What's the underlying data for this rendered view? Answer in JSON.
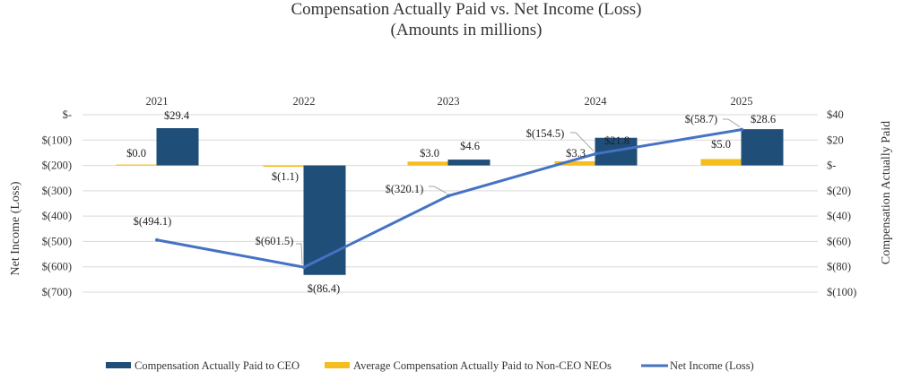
{
  "chart_data": {
    "type": "bar",
    "title": "Compensation Actually Paid vs. Net Income (Loss)",
    "subtitle": "(Amounts in millions)",
    "categories": [
      "2021",
      "2022",
      "2023",
      "2024",
      "2025"
    ],
    "y_left": {
      "label": "Net Income (Loss)",
      "ylim": [
        -700,
        0
      ],
      "ticks": [
        {
          "value": 0,
          "label": "$-"
        },
        {
          "value": -100,
          "label": "$(100)"
        },
        {
          "value": -200,
          "label": "$(200)"
        },
        {
          "value": -300,
          "label": "$(300)"
        },
        {
          "value": -400,
          "label": "$(400)"
        },
        {
          "value": -500,
          "label": "$(500)"
        },
        {
          "value": -600,
          "label": "$(600)"
        },
        {
          "value": -700,
          "label": "$(700)"
        }
      ]
    },
    "y_right": {
      "label": "Compensation Actually Paid",
      "ylim": [
        -100,
        40
      ],
      "ticks": [
        {
          "value": 40,
          "label": "$40"
        },
        {
          "value": 20,
          "label": "$20"
        },
        {
          "value": 0,
          "label": "$-"
        },
        {
          "value": -20,
          "label": "$(20)"
        },
        {
          "value": -40,
          "label": "$(40)"
        },
        {
          "value": -60,
          "label": "$(60)"
        },
        {
          "value": -80,
          "label": "$(80)"
        },
        {
          "value": -100,
          "label": "$(100)"
        }
      ]
    },
    "grid": true,
    "legend_position": "bottom",
    "series": [
      {
        "name": "Compensation Actually Paid to CEO",
        "type": "bar",
        "axis": "right",
        "color": "#1f4e79",
        "values": [
          29.4,
          -86.4,
          4.6,
          21.8,
          28.6
        ],
        "labels": [
          "$29.4",
          "$(86.4)",
          "$4.6",
          "$21.8",
          "$28.6"
        ]
      },
      {
        "name": "Average Compensation Actually Paid to Non-CEO NEOs",
        "type": "bar",
        "axis": "right",
        "color": "#f5bd1f",
        "values": [
          0.0,
          -1.1,
          3.0,
          3.3,
          5.0
        ],
        "labels": [
          "$0.0",
          "$(1.1)",
          "$3.0",
          "$3.3",
          "$5.0"
        ]
      },
      {
        "name": "Net Income (Loss)",
        "type": "line",
        "axis": "left",
        "color": "#4472c4",
        "values": [
          -494.1,
          -601.5,
          -320.1,
          -154.5,
          -58.7
        ],
        "labels": [
          "$(494.1)",
          "$(601.5)",
          "$(320.1)",
          "$(154.5)",
          "$(58.7)"
        ]
      }
    ]
  }
}
